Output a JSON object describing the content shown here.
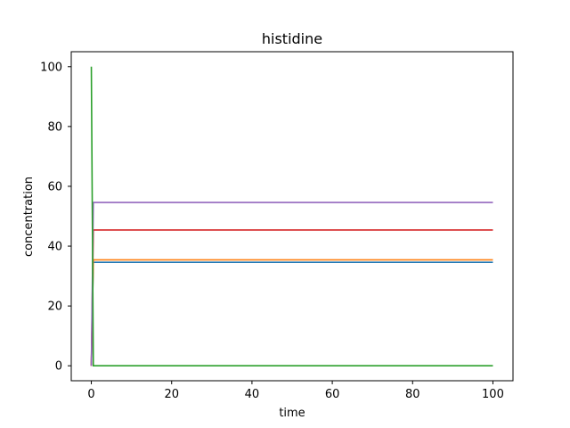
{
  "chart_data": {
    "type": "line",
    "title": "histidine",
    "xlabel": "time",
    "ylabel": "concentration",
    "xlim": [
      -5,
      105
    ],
    "ylim": [
      -5,
      105
    ],
    "xticks": [
      0,
      20,
      40,
      60,
      80,
      100
    ],
    "yticks": [
      0,
      20,
      40,
      60,
      80,
      100
    ],
    "grid": false,
    "series": [
      {
        "color": "#1f77b4",
        "x": [
          0,
          0.5,
          100
        ],
        "y": [
          0,
          34.6,
          34.6
        ]
      },
      {
        "color": "#ff7f0e",
        "x": [
          0,
          0.5,
          100
        ],
        "y": [
          0,
          35.4,
          35.4
        ]
      },
      {
        "color": "#d62728",
        "x": [
          0,
          0.5,
          100
        ],
        "y": [
          0,
          45.4,
          45.4
        ]
      },
      {
        "color": "#9467bd",
        "x": [
          0,
          0.5,
          100
        ],
        "y": [
          0,
          54.6,
          54.6
        ]
      },
      {
        "color": "#2ca02c",
        "x": [
          0,
          0.5,
          100
        ],
        "y": [
          100,
          0,
          0
        ]
      }
    ]
  }
}
